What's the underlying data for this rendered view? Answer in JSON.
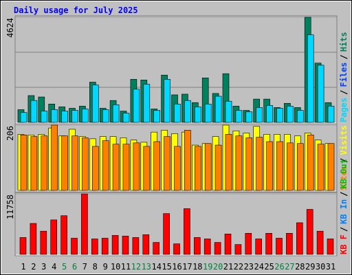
{
  "chart_data": [
    {
      "type": "bar",
      "title": "Daily usage for July 2025",
      "series": [
        {
          "name": "Hits",
          "color": "#00805c",
          "values": [
            559,
            1179,
            1117,
            807,
            683,
            621,
            714,
            1769,
            621,
            962,
            497,
            1893,
            1862,
            590,
            2079,
            1210,
            1241,
            869,
            1955,
            1272,
            2141,
            714,
            528,
            1024,
            1024,
            652,
            838,
            652,
            4624,
            2607,
            869
          ]
        },
        {
          "name": "Pages",
          "color": "#00d8ff",
          "values": [
            434,
            962,
            497,
            559,
            497,
            528,
            590,
            1645,
            559,
            776,
            403,
            1458,
            1676,
            528,
            1893,
            807,
            962,
            683,
            807,
            1148,
            931,
            528,
            465,
            652,
            745,
            621,
            714,
            528,
            3848,
            2513,
            714
          ]
        }
      ],
      "extra_legend": [
        {
          "name": "Files",
          "color": "#0040ff"
        }
      ],
      "ylim": [
        0,
        4624
      ],
      "yticks": [
        4624
      ]
    },
    {
      "type": "bar",
      "series": [
        {
          "name": "Visits",
          "color": "#ffff00",
          "values": [
            177,
            175,
            177,
            197,
            172,
            193,
            170,
            163,
            170,
            170,
            166,
            159,
            152,
            184,
            190,
            179,
            184,
            143,
            148,
            170,
            206,
            188,
            181,
            202,
            177,
            177,
            177,
            172,
            181,
            159,
            148
          ]
        },
        {
          "name": "Sites",
          "color": "#ff8000",
          "values": [
            175,
            170,
            172,
            206,
            172,
            172,
            166,
            139,
            157,
            146,
            146,
            150,
            139,
            154,
            170,
            139,
            190,
            139,
            148,
            143,
            177,
            172,
            166,
            168,
            154,
            154,
            150,
            148,
            175,
            146,
            148
          ]
        }
      ],
      "ylim": [
        0,
        206
      ],
      "yticks": [
        206
      ]
    },
    {
      "type": "bar",
      "categories": [
        "1",
        "2",
        "3",
        "4",
        "5",
        "6",
        "7",
        "8",
        "9",
        "10",
        "11",
        "12",
        "13",
        "14",
        "15",
        "16",
        "17",
        "18",
        "19",
        "20",
        "21",
        "22",
        "23",
        "24",
        "25",
        "26",
        "27",
        "28",
        "29",
        "30",
        "31"
      ],
      "weekend": [
        4,
        5,
        11,
        12,
        18,
        19,
        25,
        26
      ],
      "weekend_color": "#008040",
      "series": [
        {
          "name": "KB F",
          "color": "#ff0000",
          "values": [
            3281,
            6016,
            4512,
            6699,
            7520,
            3145,
            11758,
            3008,
            3145,
            3691,
            3555,
            3281,
            3828,
            2324,
            7930,
            2051,
            8887,
            3281,
            3008,
            2324,
            3965,
            1914,
            4102,
            3008,
            4102,
            3145,
            4102,
            6153,
            8750,
            4512,
            3008
          ]
        }
      ],
      "extra_legend": [
        {
          "name": "KB In",
          "color": "#0080ff"
        },
        {
          "name": "KB Out",
          "color": "#00c000"
        }
      ],
      "ylim": [
        0,
        11758
      ],
      "yticks": [
        11758
      ]
    }
  ],
  "legend_separator": "/"
}
